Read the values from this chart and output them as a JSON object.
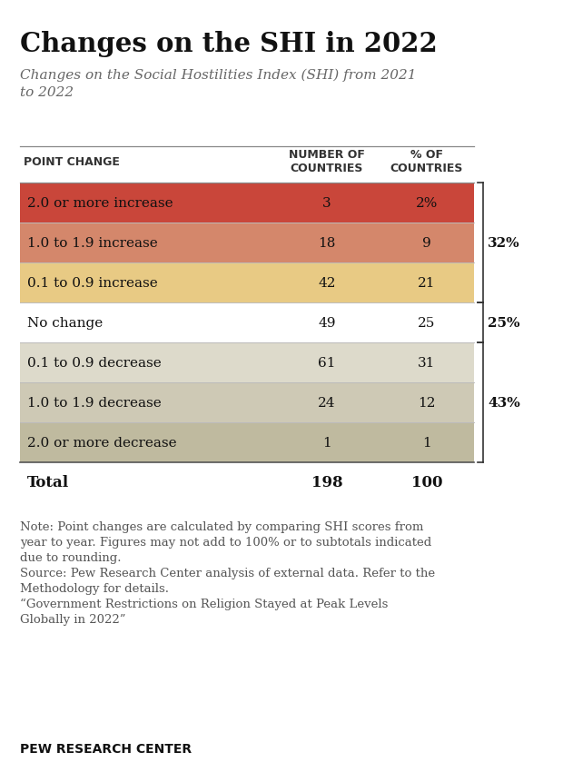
{
  "title": "Changes on the SHI in 2022",
  "subtitle": "Changes on the Social Hostilities Index (SHI) from 2021\nto 2022",
  "col_headers": [
    "POINT CHANGE",
    "NUMBER OF\nCOUNTRIES",
    "% OF\nCOUNTRIES"
  ],
  "rows": [
    {
      "label": "2.0 or more increase",
      "num": "3",
      "pct": "2%",
      "bg": "#c9463a"
    },
    {
      "label": "1.0 to 1.9 increase",
      "num": "18",
      "pct": "9",
      "bg": "#d4876b"
    },
    {
      "label": "0.1 to 0.9 increase",
      "num": "42",
      "pct": "21",
      "bg": "#e8ca84"
    },
    {
      "label": "No change",
      "num": "49",
      "pct": "25",
      "bg": "#ffffff"
    },
    {
      "label": "0.1 to 0.9 decrease",
      "num": "61",
      "pct": "31",
      "bg": "#dddacb"
    },
    {
      "label": "1.0 to 1.9 decrease",
      "num": "24",
      "pct": "12",
      "bg": "#cec9b5"
    },
    {
      "label": "2.0 or more decrease",
      "num": "1",
      "pct": "1",
      "bg": "#bfba9f"
    }
  ],
  "total_row": {
    "label": "Total",
    "num": "198",
    "pct": "100"
  },
  "bracket_specs": [
    {
      "start": 0,
      "end": 2,
      "label": "32%"
    },
    {
      "start": 3,
      "end": 3,
      "label": "25%"
    },
    {
      "start": 4,
      "end": 6,
      "label": "43%"
    }
  ],
  "note_line1": "Note: Point changes are calculated by comparing SHI scores from",
  "note_line2": "year to year. Figures may not add to 100% or to subtotals indicated",
  "note_line3": "due to rounding.",
  "note_line4": "Source: Pew Research Center analysis of external data. Refer to the",
  "note_line5": "Methodology for details.",
  "note_line6": "“Government Restrictions on Religion Stayed at Peak Levels",
  "note_line7": "Globally in 2022”",
  "footer": "PEW RESEARCH CENTER",
  "bg_color": "#ffffff"
}
